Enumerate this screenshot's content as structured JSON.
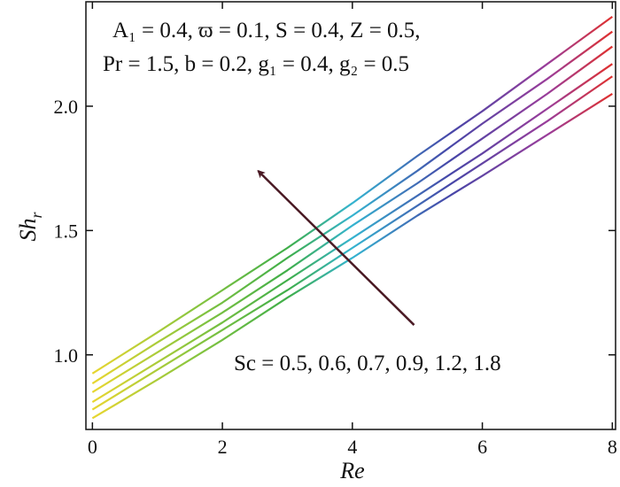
{
  "chart_data": {
    "type": "line",
    "xlabel": "Re",
    "ylabel_main": "Sh",
    "ylabel_sub": "r",
    "xlim": [
      -0.1,
      8.05
    ],
    "ylim": [
      0.7,
      2.42
    ],
    "xticks": [
      "0",
      "2",
      "4",
      "6",
      "8"
    ],
    "xtick_values": [
      0,
      2,
      4,
      6,
      8
    ],
    "yticks": [
      "1.0",
      "1.5",
      "2.0"
    ],
    "ytick_values": [
      1.0,
      1.5,
      2.0
    ],
    "grid": false,
    "x": [
      0,
      1,
      2,
      3,
      4,
      5,
      6,
      7,
      8
    ],
    "series": [
      {
        "name": "Sc = 0.5",
        "values": [
          0.745,
          0.9,
          1.06,
          1.23,
          1.39,
          1.56,
          1.72,
          1.885,
          2.05
        ]
      },
      {
        "name": "Sc = 0.6",
        "values": [
          0.78,
          0.94,
          1.1,
          1.26,
          1.43,
          1.6,
          1.77,
          1.94,
          2.12
        ]
      },
      {
        "name": "Sc = 0.7",
        "values": [
          0.81,
          0.97,
          1.13,
          1.3,
          1.47,
          1.64,
          1.81,
          1.99,
          2.17
        ]
      },
      {
        "name": "Sc = 0.9",
        "values": [
          0.85,
          1.01,
          1.17,
          1.34,
          1.52,
          1.69,
          1.87,
          2.05,
          2.24
        ]
      },
      {
        "name": "Sc = 1.2",
        "values": [
          0.885,
          1.05,
          1.21,
          1.39,
          1.56,
          1.74,
          1.93,
          2.11,
          2.3
        ]
      },
      {
        "name": "Sc = 1.8",
        "values": [
          0.925,
          1.09,
          1.26,
          1.43,
          1.61,
          1.8,
          1.98,
          2.17,
          2.36
        ]
      }
    ],
    "annotations": {
      "params_line1": "A₁ = 0.4, ϖ = 0.1, S = 0.4, Z = 0.5,",
      "params_line2": "Pr = 1.5, b = 0.2, g₁ = 0.4, g₂ = 0.5",
      "sc_label": "Sc = 0.5, 0.6, 0.7, 0.9, 1.2, 1.8"
    },
    "arrow": {
      "from": [
        4.95,
        1.12
      ],
      "to": [
        2.55,
        1.74
      ],
      "color": "#4a1a24"
    },
    "colors": {
      "axis": "#111111",
      "gradient_stops": [
        {
          "x": 0,
          "color": "#e8d630"
        },
        {
          "x": 1.5,
          "color": "#8cc63e"
        },
        {
          "x": 3,
          "color": "#3fae49"
        },
        {
          "x": 4,
          "color": "#35b4d0"
        },
        {
          "x": 5.5,
          "color": "#4646a8"
        },
        {
          "x": 7,
          "color": "#9a3d9a"
        },
        {
          "x": 8,
          "color": "#e0302e"
        }
      ]
    }
  }
}
